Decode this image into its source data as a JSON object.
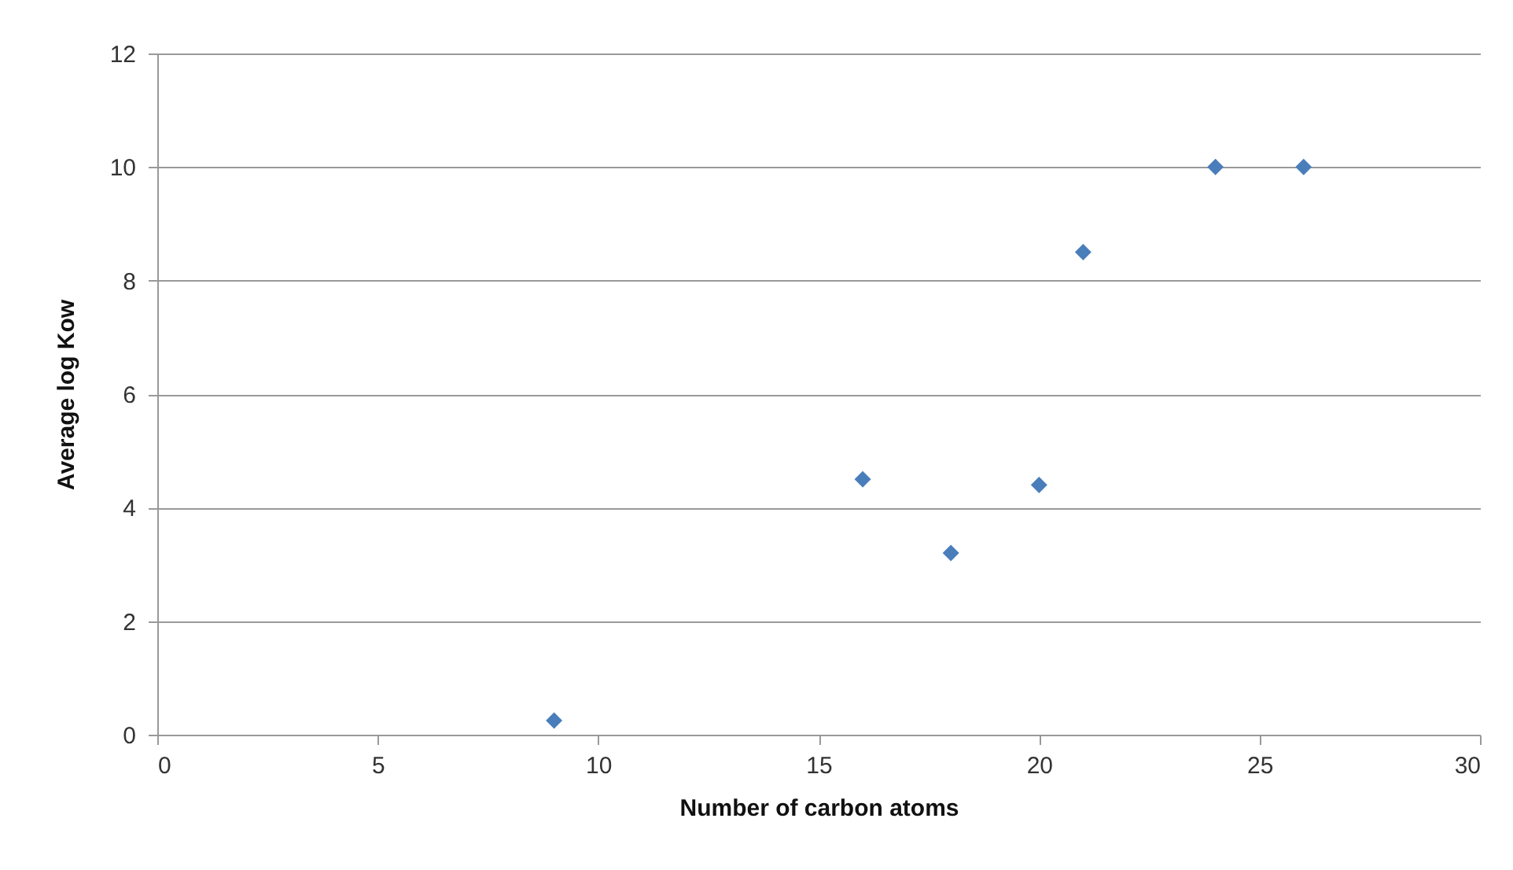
{
  "chart_data": {
    "type": "scatter",
    "x": [
      9,
      16,
      18,
      20,
      21,
      24,
      26
    ],
    "series": [
      {
        "color": "#4a7ebb",
        "values": [
          0.25,
          4.5,
          3.2,
          4.4,
          8.5,
          10,
          10
        ]
      }
    ],
    "xlabel": "Number of carbon atoms",
    "ylabel": "Average log Kow",
    "xlim": [
      0,
      30
    ],
    "xticks": [
      0,
      5,
      10,
      15,
      20,
      25,
      30
    ],
    "ylim": [
      0,
      12
    ],
    "yticks": [
      0,
      2,
      4,
      6,
      8,
      10,
      12
    ],
    "grid": "y",
    "marker": "diamond",
    "legend": false
  }
}
